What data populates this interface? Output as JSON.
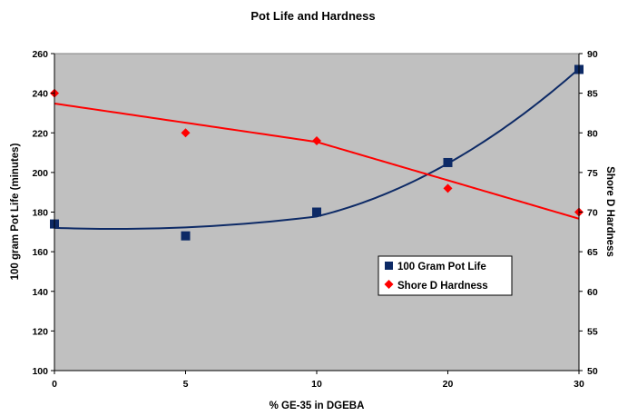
{
  "chart_data": {
    "type": "scatter",
    "title": "Pot Life and Hardness",
    "xlabel": "% GE-35 in DGEBA",
    "ylabel": "100 gram Pot Life (minutes)",
    "y2label": "Shore D Hardness",
    "x_ticks": [
      "0",
      "5",
      "10",
      "20",
      "30"
    ],
    "x_tick_values": [
      0,
      5,
      10,
      20,
      30
    ],
    "y_ticks": [
      "100",
      "120",
      "140",
      "160",
      "180",
      "200",
      "220",
      "240",
      "260"
    ],
    "y2_ticks": [
      "50",
      "55",
      "60",
      "65",
      "70",
      "75",
      "80",
      "85",
      "90"
    ],
    "ylim": [
      100,
      260
    ],
    "y2lim": [
      50,
      90
    ],
    "plot_background": "#c0c0c0",
    "legend_position": "lower-right",
    "series": [
      {
        "name": "100 Gram Pot Life",
        "axis": "left",
        "marker": "square",
        "color": "#0d2a66",
        "trend_color": "#0d2a66",
        "trend": "quadratic",
        "x": [
          0,
          5,
          10,
          20,
          30
        ],
        "values": [
          174,
          168,
          180,
          205,
          252
        ]
      },
      {
        "name": "Shore D Hardness",
        "axis": "right",
        "marker": "diamond",
        "color": "#ff0000",
        "trend_color": "#ff0000",
        "trend": "linear",
        "x": [
          0,
          5,
          10,
          20,
          30
        ],
        "values": [
          85,
          80,
          79,
          73,
          70
        ]
      }
    ]
  }
}
